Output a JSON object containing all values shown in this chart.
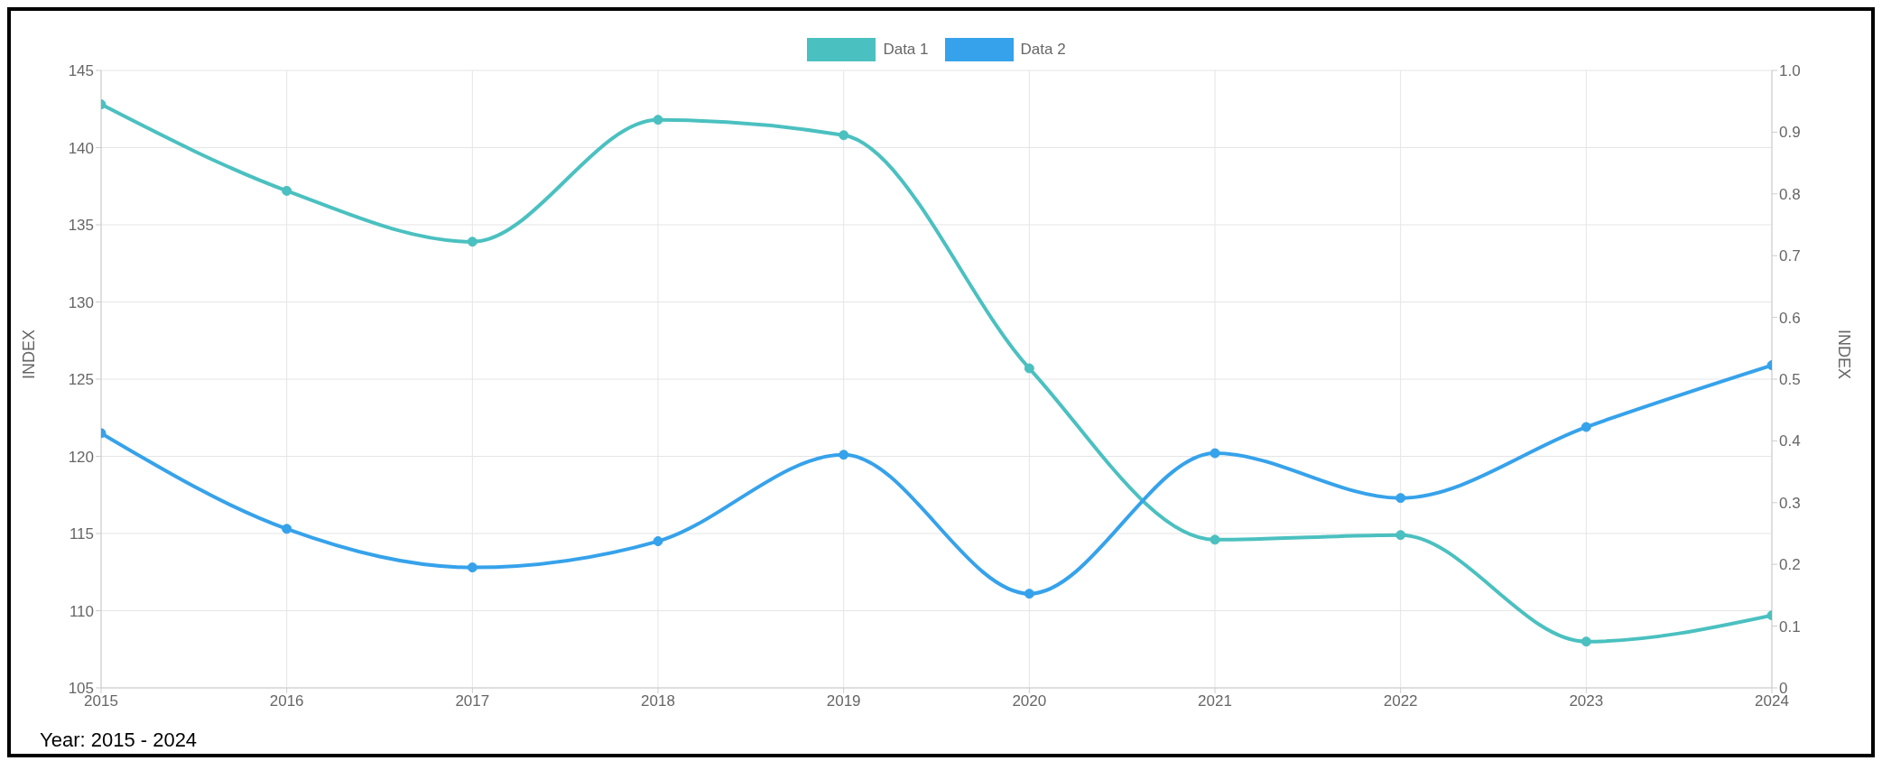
{
  "chart_data": {
    "type": "line",
    "categories": [
      "2015",
      "2016",
      "2017",
      "2018",
      "2019",
      "2020",
      "2021",
      "2022",
      "2023",
      "2024"
    ],
    "series": [
      {
        "name": "Data 1",
        "color": "#4bc0c0",
        "values": [
          142.8,
          137.2,
          133.9,
          141.8,
          140.8,
          125.7,
          114.6,
          114.9,
          108.0,
          109.7
        ]
      },
      {
        "name": "Data 2",
        "color": "#36a2eb",
        "values": [
          121.5,
          115.3,
          112.8,
          114.5,
          120.1,
          111.1,
          120.2,
          117.3,
          121.9,
          125.9
        ]
      }
    ],
    "ylabel": "INDEX",
    "y2label": "INDEX",
    "ylim": [
      105,
      145
    ],
    "yticks": [
      105,
      110,
      115,
      120,
      125,
      130,
      135,
      140,
      145
    ],
    "y2lim": [
      0,
      1
    ],
    "y2ticks": [
      0,
      0.1,
      0.2,
      0.3,
      0.4,
      0.5,
      0.6,
      0.7,
      0.8,
      0.9,
      {
        "value": 1,
        "label": "1.0"
      }
    ],
    "grid": true,
    "legend": "top",
    "marker": "circle",
    "line_style": "solid",
    "annotations": [
      "Year: 2015 - 2024"
    ]
  }
}
